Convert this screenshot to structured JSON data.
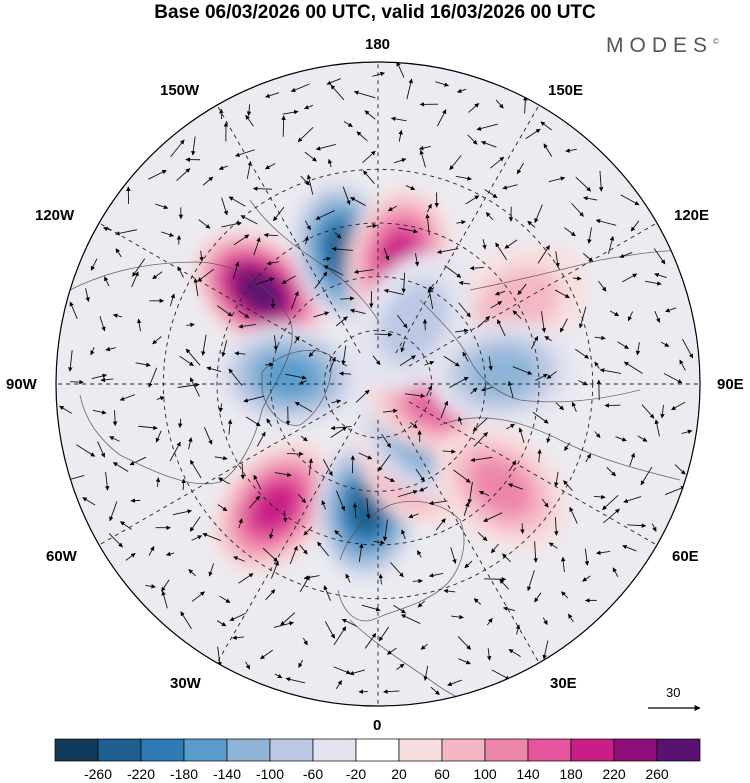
{
  "title": "Base 06/03/2026 00 UTC, valid 16/03/2026 00 UTC",
  "brand": {
    "name": "MODES",
    "mark": "©"
  },
  "longitude_labels": {
    "n180": "180",
    "w150": "150W",
    "e150": "150E",
    "w120": "120W",
    "e120": "120E",
    "w90": "90W",
    "e90": "90E",
    "w60": "60W",
    "e60": "60E",
    "w30": "30W",
    "e30": "30E",
    "z0": "0"
  },
  "reference_vector": {
    "label": "30"
  },
  "colorbar": {
    "ticks": [
      "-260",
      "-220",
      "-180",
      "-140",
      "-100",
      "-60",
      "-20",
      "20",
      "60",
      "100",
      "140",
      "180",
      "220",
      "260"
    ],
    "colors": [
      "#123a5a",
      "#1f5f8f",
      "#2f7ab5",
      "#5a9dcc",
      "#8eb5d8",
      "#bdc9e4",
      "#e4e4f0",
      "#ffffff",
      "#f8dede",
      "#f5b7c4",
      "#ee86ac",
      "#e4559b",
      "#c91e87",
      "#8f0f7a",
      "#5a1270"
    ]
  },
  "anomalies": [
    {
      "label": "+",
      "lon": -128,
      "lat": 48,
      "value": 240
    },
    {
      "label": "-",
      "lon": -166,
      "lat": 52,
      "value": -230
    },
    {
      "label": "+",
      "lon": 170,
      "lat": 55,
      "value": 170
    },
    {
      "label": "-",
      "lon": -95,
      "lat": 65,
      "value": -150
    },
    {
      "label": "+",
      "lon": -40,
      "lat": 45,
      "value": 190
    },
    {
      "label": "-",
      "lon": -5,
      "lat": 55,
      "value": -200
    },
    {
      "label": "+",
      "lon": 25,
      "lat": 68,
      "value": 130
    },
    {
      "label": "-",
      "lon": 40,
      "lat": 72,
      "value": -130
    },
    {
      "label": "+",
      "lon": 75,
      "lat": 72,
      "value": 150
    },
    {
      "label": "+",
      "lon": 50,
      "lat": 45,
      "value": 80
    },
    {
      "label": "+",
      "lon": 120,
      "lat": 45,
      "value": 70
    },
    {
      "label": "-",
      "lon": 95,
      "lat": 55,
      "value": -90
    },
    {
      "label": "-",
      "lon": 150,
      "lat": 70,
      "value": -70
    }
  ]
}
